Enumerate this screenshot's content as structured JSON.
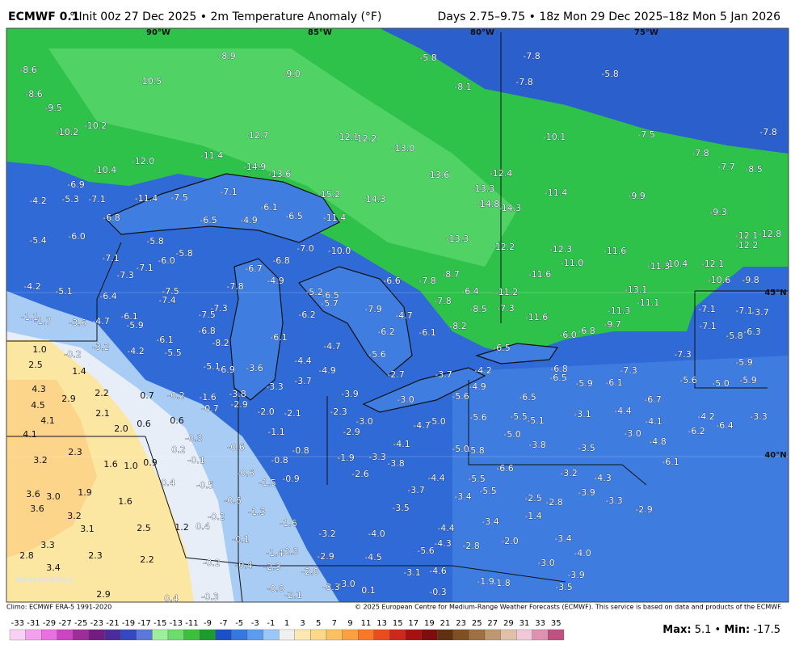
{
  "header": {
    "title_bold": "ECMWF 0.1",
    "title_rest": "° Init 00z 27 Dec 2025 • 2m Temperature Anomaly (°F)",
    "right": "Days 2.75–9.75 • 18z Mon 29 Dec 2025–18z Mon 5 Jan 2026"
  },
  "map": {
    "lon_labels": [
      "90°W",
      "85°W",
      "80°W",
      "75°W"
    ],
    "lat_labels": [
      "45°N",
      "40°N"
    ],
    "watermark": "WEATHERBELL",
    "labels": [
      "-8.6",
      "-8.9",
      "-10.5",
      "-9.0",
      "-8.6",
      "-9.5",
      "-10.2",
      "-10.2",
      "-12.7",
      "-12.1",
      "-12.2",
      "-13.0",
      "-12.0",
      "-10.4",
      "-11.4",
      "-14.9",
      "-13.6",
      "-13.6",
      "-12.4",
      "-13.3",
      "-14.3",
      "-15.2",
      "-14.8",
      "-14.3",
      "-11.4",
      "-6.9",
      "-4.2",
      "-5.3",
      "-7.1",
      "-11.4",
      "-7.5",
      "-7.1",
      "-6.1",
      "-6.5",
      "-11.4",
      "-6.8",
      "-6.5",
      "-4.9",
      "-5.4",
      "-6.0",
      "-5.8",
      "-7.1",
      "-7.3",
      "-7.1",
      "-6.0",
      "-5.8",
      "-7.0",
      "-10.0",
      "-13.3",
      "-12.2",
      "-12.3",
      "-11.6",
      "-11.0",
      "-11.6",
      "-6.8",
      "-6.7",
      "-4.9",
      "-6.6",
      "-7.8",
      "-8.7",
      "-6.4",
      "-11.2",
      "-4.2",
      "-5.1",
      "-6.4",
      "-7.5",
      "-7.4",
      "-7.8",
      "-5.2",
      "-6.5",
      "-5.7",
      "-7.9",
      "-7.8",
      "-8.5",
      "-7.3",
      "-11.6",
      "-4.7",
      "-8.2",
      "-6.1",
      "-6.2",
      "-6.2",
      "-6.1",
      "-5.9",
      "-7.5",
      "-7.3",
      "-6.8",
      "-6.1",
      "-8.2",
      "-1.1",
      "-1.7",
      "-3.6",
      "-4.7",
      "-3.2",
      "-4.2",
      "-5.5",
      "-6.1",
      "-4.7",
      "-5.6",
      "-4.4",
      "-3.6",
      "-5.1",
      "-6.9",
      "-4.9",
      "-3.7",
      "-3.3",
      "-2.7",
      "-3.7",
      "-4.2",
      "-6.5",
      "-6.0",
      "-6.8",
      "1.0",
      "-0.2",
      "2.5",
      "1.4",
      "4.3",
      "2.9",
      "2.2",
      "4.5",
      "2.1",
      "4.1",
      "2.0",
      "0.6",
      "4.1",
      "2.3",
      "1.6",
      "1.0",
      "0.9",
      "3.2",
      "3.6",
      "3.0",
      "1.9",
      "1.6",
      "3.6",
      "3.2",
      "3.1",
      "2.5",
      "1.2",
      "3.3",
      "2.3",
      "2.8",
      "3.4",
      "2.2",
      "2.9",
      "0.7",
      "-0.2",
      "-1.6",
      "-3.8",
      "-0.7",
      "-2.9",
      "0.6",
      "-2.0",
      "-2.1",
      "-2.3",
      "-3.0",
      "-2.9",
      "-3.9",
      "-3.0",
      "-5.6",
      "-6.5",
      "-4.7",
      "-5.0",
      "-5.6",
      "-5.5",
      "-5.1",
      "-5.0",
      "-3.1",
      "-4.4",
      "-6.7",
      "-4.1",
      "-3.0",
      "-4.8",
      "-6.2",
      "-6.4",
      "-4.2",
      "-3.3",
      "-0.3",
      "0.2",
      "-0.1",
      "-0.6",
      "-1.1",
      "-0.8",
      "-4.1",
      "-3.8",
      "-3.5",
      "-5.0",
      "-5.8",
      "-1.9",
      "-3.3",
      "-3.8",
      "-0.8",
      "-0.6",
      "-1.5",
      "-0.9",
      "-2.6",
      "0.4",
      "-0.5",
      "-6.6",
      "-3.2",
      "-6.1",
      "-4.3",
      "-3.9",
      "-3.7",
      "-5.5",
      "-5.5",
      "-4.4",
      "-2.5",
      "-2.8",
      "-3.4",
      "-0.6",
      "-1.3",
      "-0.2",
      "0.4",
      "-1.6",
      "-3.5",
      "-3.4",
      "-1.4",
      "-3.3",
      "-2.9",
      "-3.2",
      "-4.0",
      "-4.4",
      "-2.0",
      "-3.4",
      "-0.1",
      "-4.3",
      "-2.8",
      "-1.4",
      "-2.3",
      "-2.9",
      "-4.5",
      "-5.6",
      "-4.0",
      "-0.2",
      "-0.4",
      "-2.3",
      "-2.8",
      "-3.0",
      "-3.1",
      "-4.6",
      "-3.9",
      "-3.5",
      "-0.8",
      "-2.1",
      "-3.3",
      "-3.0",
      "0.1",
      "-0.3",
      "-1.9",
      "-1.8",
      "-0.3",
      "0.4",
      "-5.8",
      "-7.8",
      "-8.1",
      "-7.8",
      "-5.8",
      "-10.1",
      "-7.5",
      "-7.8",
      "-7.7",
      "-8.5",
      "-7.8",
      "-9.9",
      "-9.3",
      "-12.1",
      "-12.8",
      "-12.2",
      "-12.1",
      "-10.4",
      "-11.3",
      "-10.6",
      "-9.8",
      "-13.1",
      "-11.1",
      "-11.3",
      "-9.7",
      "-7.1",
      "-7.1",
      "-3.7",
      "-7.1",
      "-5.8",
      "-6.3",
      "-7.3",
      "-5.9",
      "-5.6",
      "-5.0",
      "-5.9",
      "-7.3",
      "-6.1",
      "-5.9",
      "-6.5",
      "-6.8",
      "-4.9"
    ]
  },
  "footer": {
    "left": "Climo: ECMWF ERA-5 1991-2020",
    "right": "© 2025 European Centre for Medium-Range Weather Forecasts (ECMWF). This service is based on data and products of the ECMWF."
  },
  "colorbar": {
    "ticks": [
      -33,
      -31,
      -29,
      -27,
      -25,
      -23,
      -21,
      -19,
      -17,
      -15,
      -13,
      -11,
      -9,
      -7,
      -5,
      -3,
      -1,
      1,
      3,
      5,
      7,
      9,
      11,
      13,
      15,
      17,
      19,
      21,
      23,
      25,
      27,
      29,
      31,
      33,
      35
    ],
    "colors": [
      "#fbd0f5",
      "#f4a0ee",
      "#e870e0",
      "#cc44c4",
      "#a02c9c",
      "#741c84",
      "#4c2c9c",
      "#3448c0",
      "#5a78dc",
      "#9cf09c",
      "#6cdc6c",
      "#3cc03c",
      "#1c9c2c",
      "#1c50c8",
      "#3478e0",
      "#5c9cf0",
      "#98c8f8",
      "#f0f0f0",
      "#fce8b0",
      "#fcd888",
      "#fcc060",
      "#fca040",
      "#f87828",
      "#ec4c1c",
      "#d02818",
      "#a81010",
      "#800c0c",
      "#603010",
      "#805020",
      "#a07040",
      "#c09870",
      "#e0c0a8",
      "#f0c8d8",
      "#e090b0",
      "#c05080"
    ]
  },
  "stats": {
    "max_label": "Max:",
    "max": 5.1,
    "sep": "•",
    "min_label": "Min:",
    "min": -17.5
  }
}
